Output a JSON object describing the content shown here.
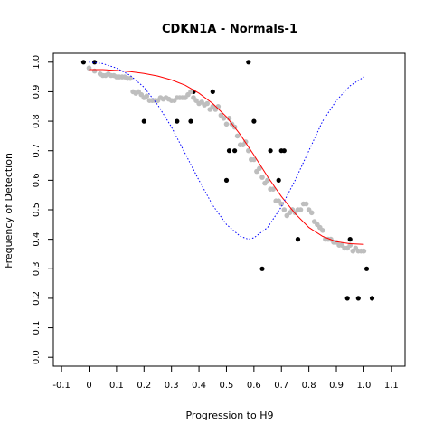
{
  "chart_data": {
    "type": "scatter",
    "title": "CDKN1A - Normals-1",
    "xlabel": "Progression to H9",
    "ylabel": "Frequency of Detection",
    "xlim": [
      -0.13,
      1.15
    ],
    "ylim": [
      -0.03,
      1.03
    ],
    "xticks": [
      -0.1,
      0,
      0.1,
      0.2,
      0.3,
      0.4,
      0.5,
      0.6,
      0.7,
      0.8,
      0.9,
      1.0,
      1.1
    ],
    "xtick_labels": [
      "-0.1",
      "0",
      "0.1",
      "0.2",
      "0.3",
      "0.4",
      "0.5",
      "0.6",
      "0.7",
      "0.8",
      "0.9",
      "1.0",
      "1.1"
    ],
    "yticks": [
      0,
      0.1,
      0.2,
      0.3,
      0.4,
      0.5,
      0.6,
      0.7,
      0.8,
      0.9,
      1.0
    ],
    "ytick_labels": [
      "0.0",
      "0.1",
      "0.2",
      "0.3",
      "0.4",
      "0.5",
      "0.6",
      "0.7",
      "0.8",
      "0.9",
      "1.0"
    ],
    "grid": false,
    "series": [
      {
        "kind": "points",
        "color": "#000000",
        "x": [
          -0.02,
          0.02,
          0.2,
          0.32,
          0.37,
          0.38,
          0.45,
          0.5,
          0.51,
          0.53,
          0.58,
          0.6,
          0.63,
          0.65,
          0.66,
          0.69,
          0.7,
          0.71,
          0.74,
          0.76,
          0.94,
          0.95,
          0.98,
          1.01,
          1.03
        ],
        "y": [
          1.0,
          1.0,
          0.8,
          0.8,
          0.8,
          0.9,
          0.9,
          0.6,
          0.7,
          0.7,
          1.0,
          0.8,
          0.3,
          0.6,
          0.7,
          0.6,
          0.7,
          0.7,
          0.5,
          0.4,
          0.2,
          0.4,
          0.2,
          0.3,
          0.2
        ]
      },
      {
        "kind": "points",
        "color": "#bebebe",
        "x": [
          0.0,
          0.02,
          0.04,
          0.05,
          0.06,
          0.07,
          0.08,
          0.09,
          0.1,
          0.11,
          0.12,
          0.13,
          0.14,
          0.15,
          0.16,
          0.17,
          0.18,
          0.19,
          0.2,
          0.21,
          0.22,
          0.23,
          0.24,
          0.25,
          0.26,
          0.27,
          0.28,
          0.29,
          0.3,
          0.31,
          0.32,
          0.33,
          0.34,
          0.35,
          0.36,
          0.37,
          0.38,
          0.39,
          0.4,
          0.41,
          0.42,
          0.43,
          0.44,
          0.45,
          0.46,
          0.47,
          0.48,
          0.49,
          0.5,
          0.51,
          0.52,
          0.53,
          0.54,
          0.55,
          0.56,
          0.57,
          0.58,
          0.59,
          0.6,
          0.61,
          0.62,
          0.63,
          0.64,
          0.65,
          0.66,
          0.67,
          0.68,
          0.69,
          0.7,
          0.71,
          0.72,
          0.73,
          0.74,
          0.75,
          0.76,
          0.77,
          0.78,
          0.79,
          0.8,
          0.81,
          0.82,
          0.83,
          0.84,
          0.85,
          0.86,
          0.87,
          0.88,
          0.89,
          0.9,
          0.91,
          0.92,
          0.93,
          0.94,
          0.95,
          0.96,
          0.97,
          0.98,
          0.99,
          1.0
        ],
        "y": [
          0.98,
          0.97,
          0.96,
          0.955,
          0.955,
          0.96,
          0.955,
          0.955,
          0.95,
          0.95,
          0.95,
          0.95,
          0.945,
          0.945,
          0.9,
          0.895,
          0.9,
          0.89,
          0.88,
          0.885,
          0.87,
          0.87,
          0.87,
          0.87,
          0.88,
          0.875,
          0.88,
          0.875,
          0.87,
          0.87,
          0.88,
          0.88,
          0.88,
          0.88,
          0.89,
          0.9,
          0.88,
          0.87,
          0.86,
          0.865,
          0.855,
          0.86,
          0.84,
          0.85,
          0.84,
          0.85,
          0.82,
          0.81,
          0.79,
          0.81,
          0.79,
          0.78,
          0.75,
          0.72,
          0.72,
          0.73,
          0.7,
          0.67,
          0.67,
          0.63,
          0.64,
          0.61,
          0.59,
          0.6,
          0.57,
          0.57,
          0.53,
          0.53,
          0.52,
          0.5,
          0.48,
          0.49,
          0.5,
          0.49,
          0.5,
          0.5,
          0.52,
          0.52,
          0.5,
          0.49,
          0.46,
          0.45,
          0.44,
          0.43,
          0.4,
          0.4,
          0.4,
          0.39,
          0.39,
          0.38,
          0.38,
          0.37,
          0.37,
          0.38,
          0.36,
          0.37,
          0.36,
          0.36,
          0.36
        ]
      },
      {
        "kind": "line",
        "color": "#ff0000",
        "style": "solid",
        "x": [
          0.0,
          0.05,
          0.1,
          0.15,
          0.2,
          0.25,
          0.3,
          0.35,
          0.4,
          0.45,
          0.5,
          0.55,
          0.6,
          0.65,
          0.7,
          0.75,
          0.8,
          0.85,
          0.9,
          0.95,
          1.0
        ],
        "y": [
          0.975,
          0.975,
          0.972,
          0.968,
          0.962,
          0.953,
          0.94,
          0.922,
          0.895,
          0.86,
          0.815,
          0.755,
          0.685,
          0.612,
          0.545,
          0.487,
          0.44,
          0.41,
          0.392,
          0.385,
          0.383
        ]
      },
      {
        "kind": "line",
        "color": "#0000ff",
        "style": "dotted",
        "x": [
          0.0,
          0.05,
          0.1,
          0.15,
          0.2,
          0.25,
          0.3,
          0.35,
          0.4,
          0.45,
          0.5,
          0.55,
          0.58,
          0.6,
          0.65,
          0.7,
          0.75,
          0.8,
          0.85,
          0.9,
          0.95,
          1.0
        ],
        "y": [
          1.0,
          0.995,
          0.98,
          0.955,
          0.915,
          0.855,
          0.78,
          0.69,
          0.6,
          0.515,
          0.45,
          0.41,
          0.4,
          0.405,
          0.44,
          0.51,
          0.6,
          0.7,
          0.8,
          0.87,
          0.92,
          0.95
        ]
      }
    ]
  }
}
